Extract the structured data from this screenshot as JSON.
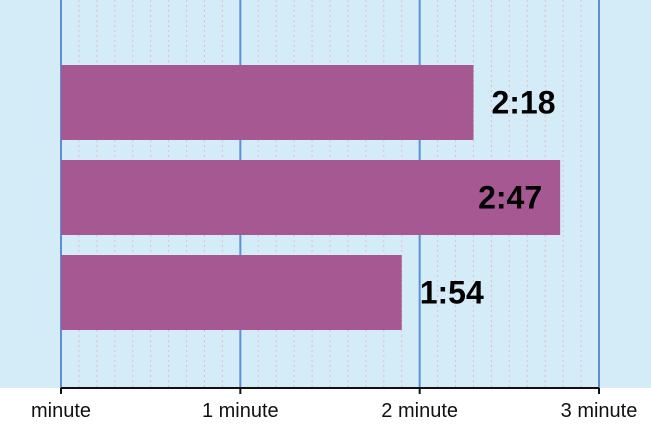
{
  "chart_data": {
    "type": "bar",
    "orientation": "horizontal",
    "categories": [
      "",
      "",
      ""
    ],
    "values": [
      138,
      167,
      114
    ],
    "value_labels": [
      "2:18",
      "2:47",
      "1:54"
    ],
    "xlim": [
      0,
      180
    ],
    "xticks": [
      0,
      60,
      120,
      180
    ],
    "xtick_labels": [
      "minute",
      "1 minute",
      "2 minute",
      "3 minute"
    ],
    "grid": true,
    "title": "",
    "xlabel": "",
    "ylabel": ""
  },
  "colors": {
    "background": "#d3ecf8",
    "bar": "#a65893",
    "major_grid": "#5b8fd8",
    "minor_grid": "#e9bcc4",
    "axis": "#111111"
  }
}
